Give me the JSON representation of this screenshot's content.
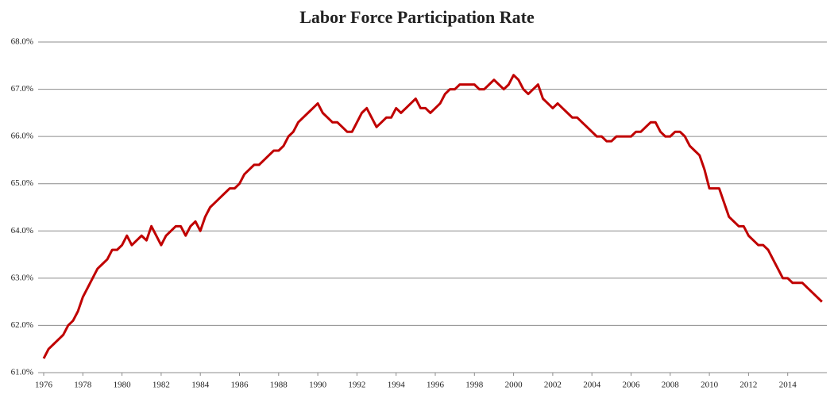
{
  "chart_data": {
    "type": "line",
    "title": "Labor Force Participation Rate",
    "x": [
      1976,
      1976.25,
      1976.5,
      1976.75,
      1977,
      1977.25,
      1977.5,
      1977.75,
      1978,
      1978.25,
      1978.5,
      1978.75,
      1979,
      1979.25,
      1979.5,
      1979.75,
      1980,
      1980.25,
      1980.5,
      1980.75,
      1981,
      1981.25,
      1981.5,
      1981.75,
      1982,
      1982.25,
      1982.5,
      1982.75,
      1983,
      1983.25,
      1983.5,
      1983.75,
      1984,
      1984.25,
      1984.5,
      1984.75,
      1985,
      1985.25,
      1985.5,
      1985.75,
      1986,
      1986.25,
      1986.5,
      1986.75,
      1987,
      1987.25,
      1987.5,
      1987.75,
      1988,
      1988.25,
      1988.5,
      1988.75,
      1989,
      1989.25,
      1989.5,
      1989.75,
      1990,
      1990.25,
      1990.5,
      1990.75,
      1991,
      1991.25,
      1991.5,
      1991.75,
      1992,
      1992.25,
      1992.5,
      1992.75,
      1993,
      1993.25,
      1993.5,
      1993.75,
      1994,
      1994.25,
      1994.5,
      1994.75,
      1995,
      1995.25,
      1995.5,
      1995.75,
      1996,
      1996.25,
      1996.5,
      1996.75,
      1997,
      1997.25,
      1997.5,
      1997.75,
      1998,
      1998.25,
      1998.5,
      1998.75,
      1999,
      1999.25,
      1999.5,
      1999.75,
      2000,
      2000.25,
      2000.5,
      2000.75,
      2001,
      2001.25,
      2001.5,
      2001.75,
      2002,
      2002.25,
      2002.5,
      2002.75,
      2003,
      2003.25,
      2003.5,
      2003.75,
      2004,
      2004.25,
      2004.5,
      2004.75,
      2005,
      2005.25,
      2005.5,
      2005.75,
      2006,
      2006.25,
      2006.5,
      2006.75,
      2007,
      2007.25,
      2007.5,
      2007.75,
      2008,
      2008.25,
      2008.5,
      2008.75,
      2009,
      2009.25,
      2009.5,
      2009.75,
      2010,
      2010.25,
      2010.5,
      2010.75,
      2011,
      2011.25,
      2011.5,
      2011.75,
      2012,
      2012.25,
      2012.5,
      2012.75,
      2013,
      2013.25,
      2013.5,
      2013.75,
      2014,
      2014.25,
      2014.5,
      2014.75,
      2015,
      2015.25,
      2015.5,
      2015.75
    ],
    "series": [
      {
        "color": "#c00000",
        "values": [
          61.3,
          61.5,
          61.6,
          61.7,
          61.8,
          62.0,
          62.1,
          62.3,
          62.6,
          62.8,
          63.0,
          63.2,
          63.3,
          63.4,
          63.6,
          63.6,
          63.7,
          63.9,
          63.7,
          63.8,
          63.9,
          63.8,
          64.1,
          63.9,
          63.7,
          63.9,
          64.0,
          64.1,
          64.1,
          63.9,
          64.1,
          64.2,
          64.0,
          64.3,
          64.5,
          64.6,
          64.7,
          64.8,
          64.9,
          64.9,
          65.0,
          65.2,
          65.3,
          65.4,
          65.4,
          65.5,
          65.6,
          65.7,
          65.7,
          65.8,
          66.0,
          66.1,
          66.3,
          66.4,
          66.5,
          66.6,
          66.7,
          66.5,
          66.4,
          66.3,
          66.3,
          66.2,
          66.1,
          66.1,
          66.3,
          66.5,
          66.6,
          66.4,
          66.2,
          66.3,
          66.4,
          66.4,
          66.6,
          66.5,
          66.6,
          66.7,
          66.8,
          66.6,
          66.6,
          66.5,
          66.6,
          66.7,
          66.9,
          67.0,
          67.0,
          67.1,
          67.1,
          67.1,
          67.1,
          67.0,
          67.0,
          67.1,
          67.2,
          67.1,
          67.0,
          67.1,
          67.3,
          67.2,
          67.0,
          66.9,
          67.0,
          67.1,
          66.8,
          66.7,
          66.6,
          66.7,
          66.6,
          66.5,
          66.4,
          66.4,
          66.3,
          66.2,
          66.1,
          66.0,
          66.0,
          65.9,
          65.9,
          66.0,
          66.0,
          66.0,
          66.0,
          66.1,
          66.1,
          66.2,
          66.3,
          66.3,
          66.1,
          66.0,
          66.0,
          66.1,
          66.1,
          66.0,
          65.8,
          65.7,
          65.6,
          65.3,
          64.9,
          64.9,
          64.9,
          64.6,
          64.3,
          64.2,
          64.1,
          64.1,
          63.9,
          63.8,
          63.7,
          63.7,
          63.6,
          63.4,
          63.2,
          63.0,
          63.0,
          62.9,
          62.9,
          62.9,
          62.8,
          62.7,
          62.6,
          62.5
        ]
      }
    ],
    "xlim": [
      1976,
      2016
    ],
    "xticks": [
      1976,
      1978,
      1980,
      1982,
      1984,
      1986,
      1988,
      1990,
      1992,
      1994,
      1996,
      1998,
      2000,
      2002,
      2004,
      2006,
      2008,
      2010,
      2012,
      2014
    ],
    "ylim": [
      61,
      68
    ],
    "yticks": [
      {
        "value": 61,
        "label": "61.0%"
      },
      {
        "value": 62,
        "label": "62.0%"
      },
      {
        "value": 63,
        "label": "63.0%"
      },
      {
        "value": 64,
        "label": "64.0%"
      },
      {
        "value": 65,
        "label": "65.0%"
      },
      {
        "value": 66,
        "label": "66.0%"
      },
      {
        "value": 67,
        "label": "67.0%"
      },
      {
        "value": 68,
        "label": "68.0%"
      }
    ],
    "grid": true
  }
}
